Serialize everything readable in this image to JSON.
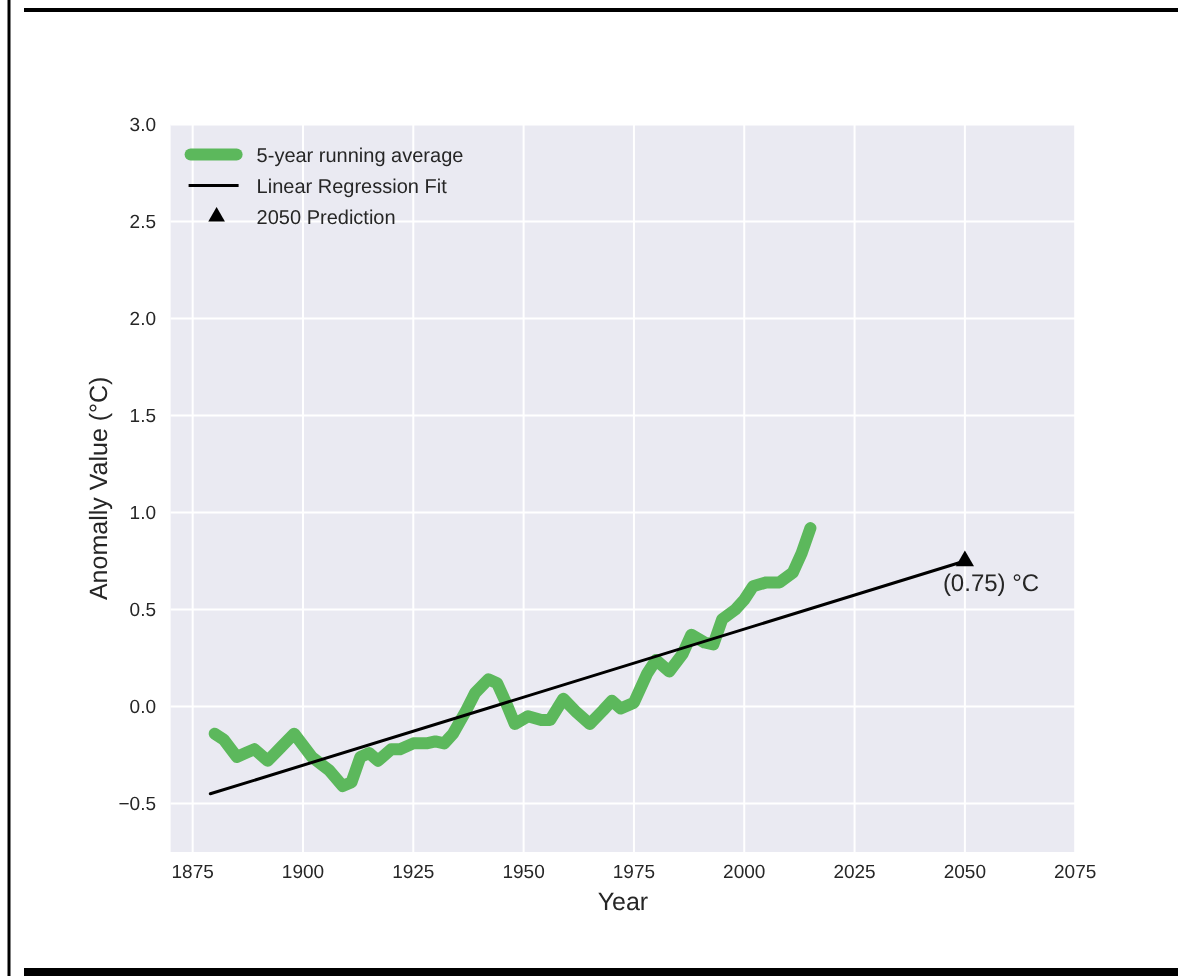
{
  "chart_data": {
    "type": "line",
    "xlabel": "Year",
    "ylabel": "Anomally Value (°C)",
    "xlim": [
      1870,
      2075
    ],
    "xticks": [
      1875,
      1900,
      1925,
      1950,
      1975,
      2000,
      2025,
      2050,
      2075
    ],
    "ylim": [
      -0.75,
      3.0
    ],
    "yticks": [
      {
        "value": -0.5,
        "label": "−0.5"
      },
      {
        "value": 0,
        "label": "0.0"
      },
      {
        "value": 0.5,
        "label": "0.5"
      },
      {
        "value": 1,
        "label": "1.0"
      },
      {
        "value": 1.5,
        "label": "1.5"
      },
      {
        "value": 2,
        "label": "2.0"
      },
      {
        "value": 2.5,
        "label": "2.5"
      },
      {
        "value": 3,
        "label": "3.0"
      }
    ],
    "grid": true,
    "legend": "top left",
    "annotations": [
      {
        "text": "(0.75) °C",
        "x": 2050,
        "y": 0.75
      }
    ],
    "series": [
      {
        "name": "5-year running average",
        "color": "#5cb85c",
        "line_style": "solid",
        "x": [
          1880,
          1882,
          1885,
          1887,
          1889,
          1892,
          1895,
          1898,
          1902,
          1906,
          1909,
          1911,
          1913,
          1915,
          1917,
          1920,
          1922,
          1925,
          1928,
          1930,
          1932,
          1934,
          1937,
          1939,
          1942,
          1944,
          1946,
          1948,
          1951,
          1954,
          1956,
          1959,
          1962,
          1965,
          1968,
          1970,
          1972,
          1975,
          1978,
          1980,
          1983,
          1986,
          1988,
          1991,
          1993,
          1995,
          1998,
          2000,
          2002,
          2005,
          2008,
          2011,
          2013,
          2015
        ],
        "values": [
          -0.14,
          -0.17,
          -0.26,
          -0.24,
          -0.22,
          -0.28,
          -0.21,
          -0.14,
          -0.26,
          -0.33,
          -0.41,
          -0.39,
          -0.26,
          -0.24,
          -0.28,
          -0.22,
          -0.22,
          -0.19,
          -0.19,
          -0.18,
          -0.19,
          -0.14,
          -0.02,
          0.07,
          0.14,
          0.12,
          0.02,
          -0.09,
          -0.05,
          -0.07,
          -0.07,
          0.04,
          -0.03,
          -0.09,
          -0.02,
          0.03,
          -0.01,
          0.02,
          0.17,
          0.24,
          0.18,
          0.27,
          0.37,
          0.33,
          0.32,
          0.45,
          0.5,
          0.55,
          0.62,
          0.64,
          0.64,
          0.69,
          0.79,
          0.92
        ]
      },
      {
        "name": "Linear Regression Fit",
        "color": "#000000",
        "line_style": "solid",
        "x": [
          1879,
          2050
        ],
        "values": [
          -0.45,
          0.75
        ]
      },
      {
        "name": "2050 Prediction",
        "type": "scatter",
        "marker": "triangle",
        "color": "#000000",
        "x": [
          2050
        ],
        "values": [
          0.75
        ]
      }
    ]
  }
}
